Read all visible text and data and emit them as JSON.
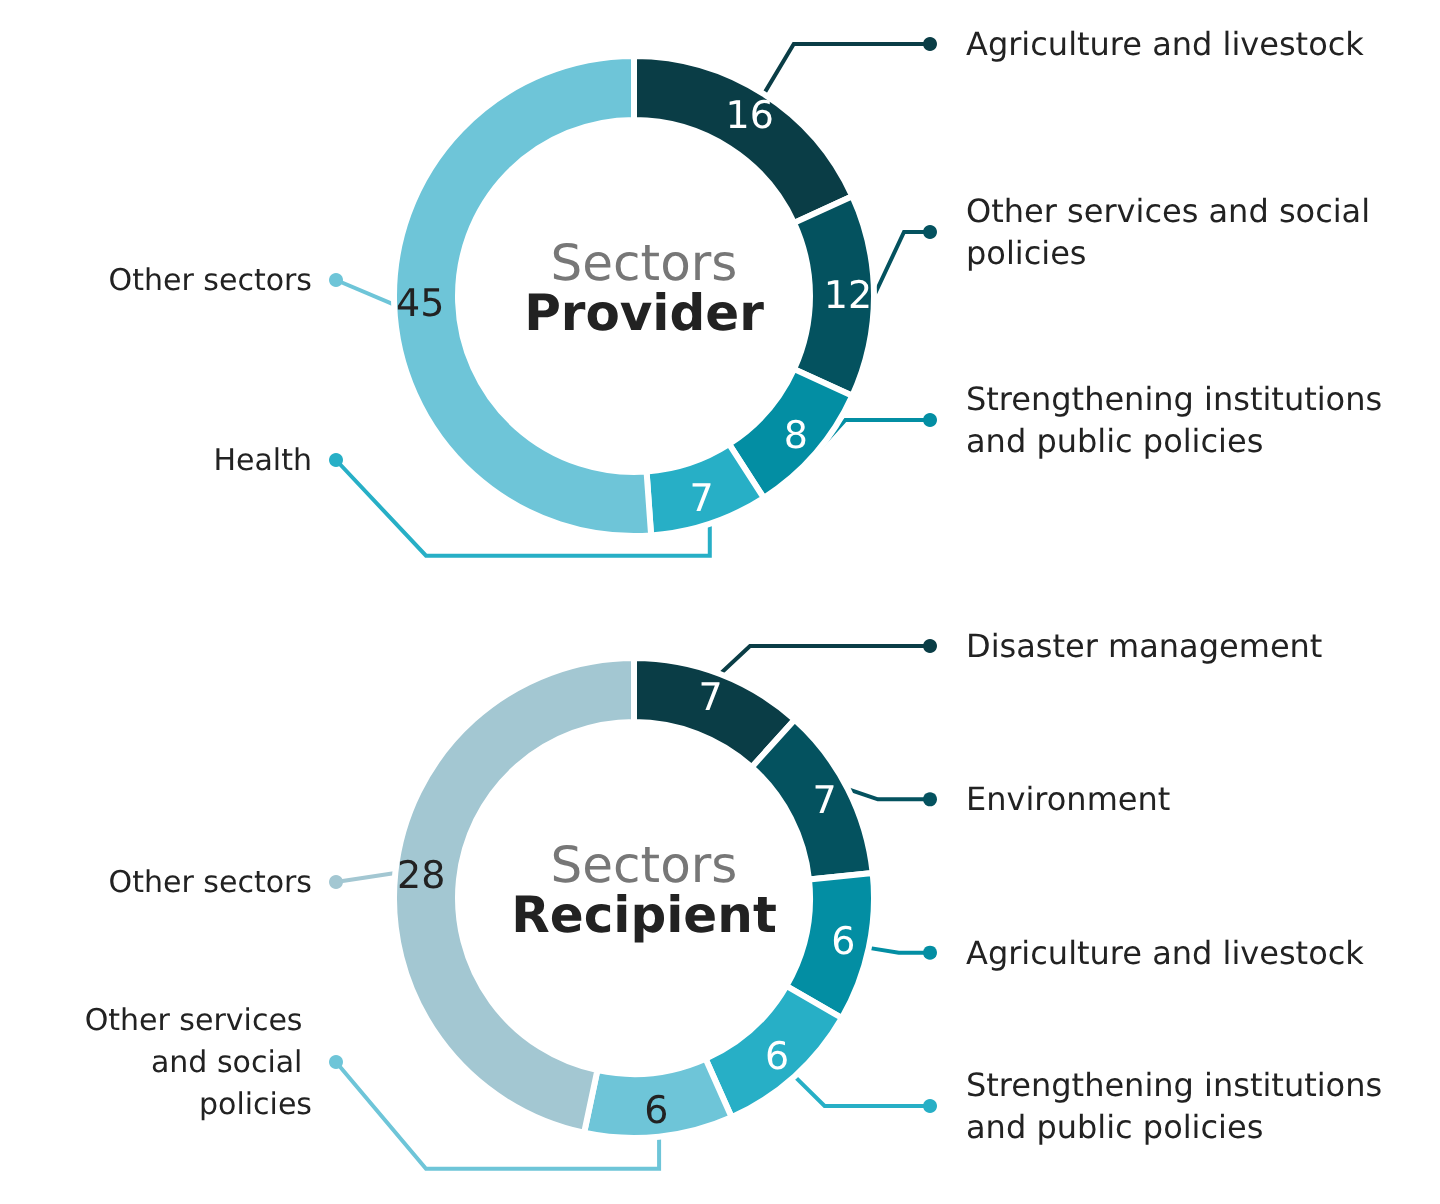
{
  "chart_data": [
    {
      "type": "donut",
      "title": "Sectors",
      "subtitle": "Provider",
      "categories": [
        "Agriculture and livestock",
        "Other services and social policies",
        "Strengthening institutions and public policies",
        "Health",
        "Other sectors"
      ],
      "values": [
        16,
        12,
        8,
        7,
        45
      ],
      "colors": [
        "#0a3d46",
        "#04525f",
        "#038ea3",
        "#27afc6",
        "#6ec5d8"
      ],
      "data_labels": true,
      "legend": "right"
    },
    {
      "type": "donut",
      "title": "Sectors",
      "subtitle": "Recipient",
      "categories": [
        "Disaster management",
        "Environment",
        "Agriculture and livestock",
        "Strengthening institutions and public policies",
        "Other services and social policies",
        "Other sectors"
      ],
      "values": [
        7,
        7,
        6,
        6,
        6,
        28
      ],
      "colors": [
        "#0a3d46",
        "#04525f",
        "#038ea3",
        "#27afc6",
        "#6ec5d8",
        "#a3c7d2"
      ],
      "data_labels": true,
      "legend": "right"
    }
  ]
}
